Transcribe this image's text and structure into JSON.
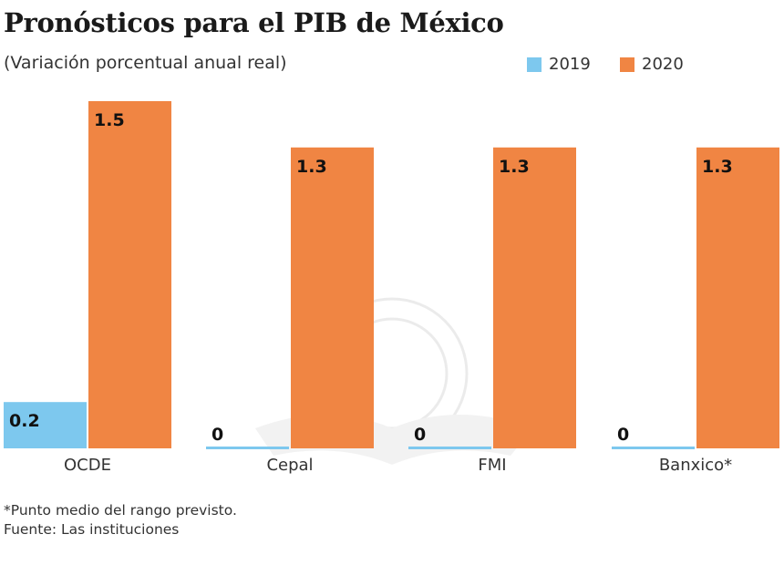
{
  "chart_data": {
    "type": "bar",
    "title": "Pronósticos para el PIB de México",
    "subtitle": "(Variación porcentual anual real)",
    "categories": [
      "OCDE",
      "Cepal",
      "FMI",
      "Banxico*"
    ],
    "series": [
      {
        "name": "2019",
        "color": "#7dc8ee",
        "values": [
          0.2,
          0,
          0,
          0
        ],
        "labels": [
          "0.2",
          "0",
          "0",
          "0"
        ]
      },
      {
        "name": "2020",
        "color": "#f08543",
        "values": [
          1.5,
          1.3,
          1.3,
          1.3
        ],
        "labels": [
          "1.5",
          "1.3",
          "1.3",
          "1.3"
        ]
      }
    ],
    "xlabel": "",
    "ylabel": "",
    "ylim": [
      0,
      1.5
    ],
    "grid": false,
    "legend_position": "top-right"
  },
  "notes": {
    "footnote": "*Punto medio del rango previsto.",
    "source": "Fuente: Las instituciones"
  }
}
